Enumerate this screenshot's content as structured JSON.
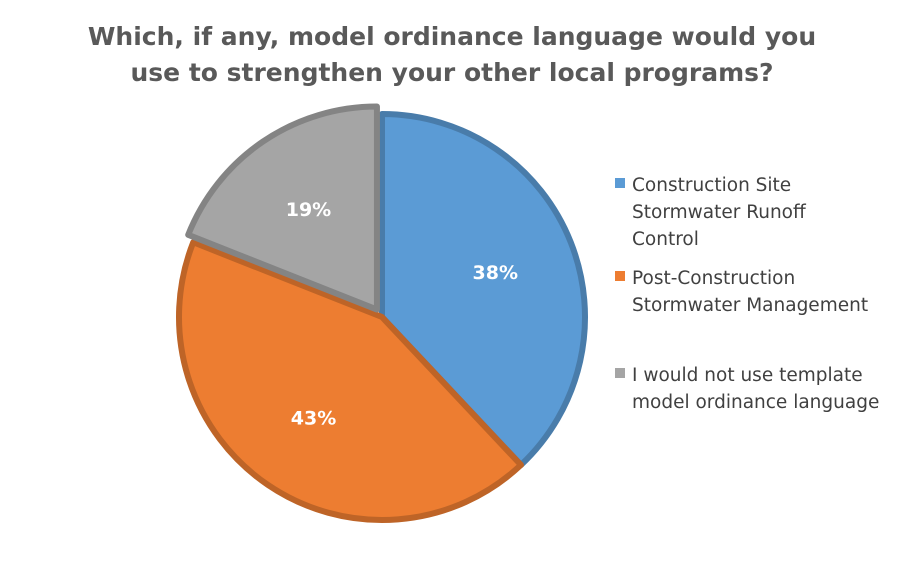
{
  "chart_data": {
    "type": "pie",
    "title_lines": [
      "Which, if any, model ordinance language would you",
      "use to strengthen your other local programs?"
    ],
    "categories": [
      "Construction Site Stormwater Runoff Control",
      "Post-Construction Stormwater Management",
      "I would not use template model ordinance language"
    ],
    "values": [
      38,
      43,
      19
    ],
    "data_labels": [
      "38%",
      "43%",
      "19%"
    ],
    "colors": [
      "#5B9BD5",
      "#ED7D31",
      "#A5A5A5"
    ],
    "legend": {
      "position": "right",
      "items": [
        {
          "lines": [
            "Construction Site",
            "Stormwater Runoff",
            "Control"
          ]
        },
        {
          "lines": [
            "Post-Construction",
            "Stormwater Management"
          ]
        },
        {
          "lines": [
            "I would not use template",
            "model ordinance language"
          ]
        }
      ]
    }
  }
}
